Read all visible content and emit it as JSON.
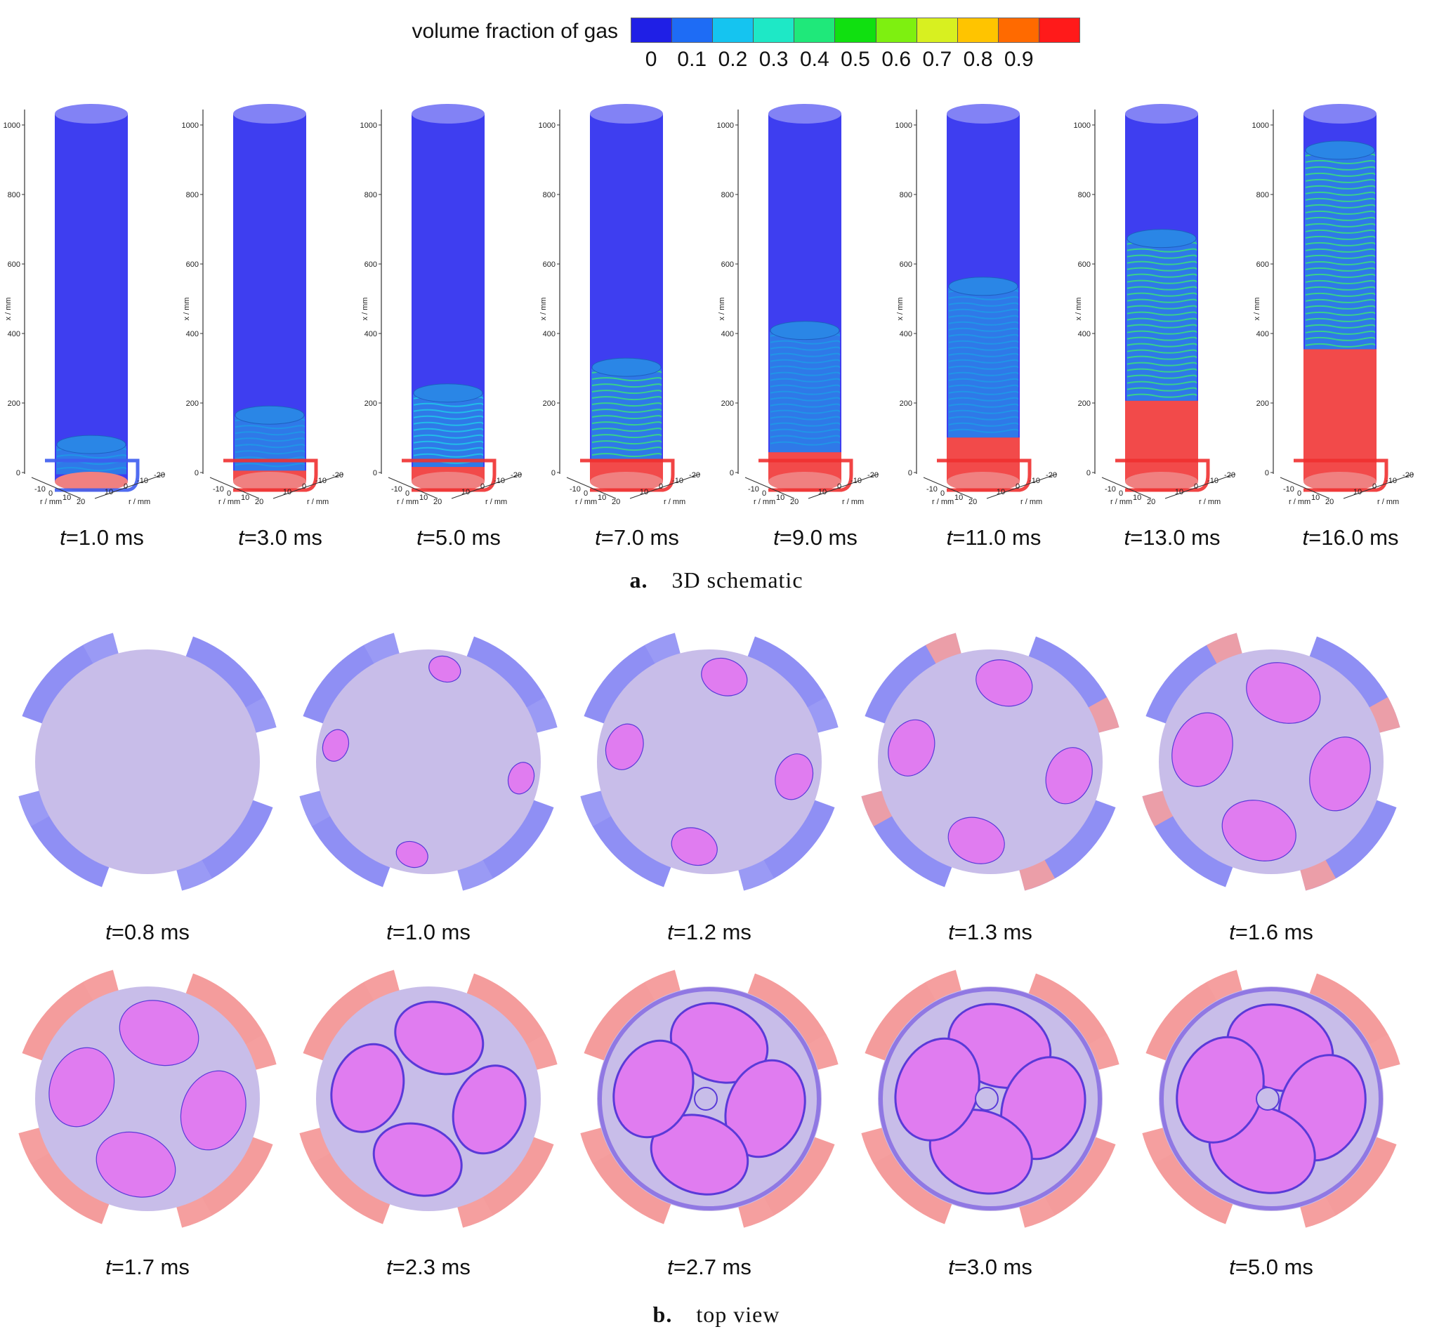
{
  "legend": {
    "title": "volume fraction of gas",
    "ticks": [
      "0",
      "0.1",
      "0.2",
      "0.3",
      "0.4",
      "0.5",
      "0.6",
      "0.7",
      "0.8",
      "0.9"
    ],
    "colors": [
      "#1f1fe6",
      "#1e6cf5",
      "#15c4f0",
      "#1ee8c6",
      "#1fe87a",
      "#10e010",
      "#7ef010",
      "#d8f020",
      "#ffc400",
      "#ff6a00",
      "#ff1a1a"
    ]
  },
  "panel_a": {
    "caption_letter": "a.",
    "caption_text": "3D schematic",
    "axis": {
      "x_label": "x / mm",
      "x_ticks": [
        "1000",
        "800",
        "600",
        "400",
        "200",
        "0"
      ],
      "r_label": "r / mm",
      "r_ticks_front": [
        "-10",
        "0",
        "10",
        "20"
      ],
      "r_ticks_side": [
        "-20",
        "-10",
        "0",
        "10"
      ]
    },
    "frames": [
      {
        "label": "1.0 ms",
        "fill_level": 0.0,
        "bubble_top": 0.12,
        "red_top": 0.0
      },
      {
        "label": "3.0 ms",
        "fill_level": 0.0,
        "bubble_top": 0.2,
        "red_top": 0.03
      },
      {
        "label": "5.0 ms",
        "fill_level": 0.0,
        "bubble_top": 0.26,
        "red_top": 0.04
      },
      {
        "label": "7.0 ms",
        "fill_level": 0.0,
        "bubble_top": 0.33,
        "red_top": 0.06
      },
      {
        "label": "9.0 ms",
        "fill_level": 0.0,
        "bubble_top": 0.43,
        "red_top": 0.08
      },
      {
        "label": "11.0 ms",
        "fill_level": 0.0,
        "bubble_top": 0.55,
        "red_top": 0.12
      },
      {
        "label": "13.0 ms",
        "fill_level": 0.0,
        "bubble_top": 0.68,
        "red_top": 0.22
      },
      {
        "label": "16.0 ms",
        "fill_level": 0.36,
        "bubble_top": 0.92,
        "red_top": 0.36
      }
    ],
    "t_prefix": "t="
  },
  "panel_b": {
    "caption_letter": "b.",
    "caption_text": "top view",
    "t_prefix": "t=",
    "row1": [
      {
        "label": "0.8 ms",
        "stage": 0
      },
      {
        "label": "1.0 ms",
        "stage": 1
      },
      {
        "label": "1.2 ms",
        "stage": 2
      },
      {
        "label": "1.3 ms",
        "stage": 3
      },
      {
        "label": "1.6 ms",
        "stage": 4
      }
    ],
    "row2": [
      {
        "label": "1.7 ms",
        "stage": 5
      },
      {
        "label": "2.3 ms",
        "stage": 6
      },
      {
        "label": "2.7 ms",
        "stage": 7
      },
      {
        "label": "3.0 ms",
        "stage": 8
      },
      {
        "label": "5.0 ms",
        "stage": 9
      }
    ]
  }
}
